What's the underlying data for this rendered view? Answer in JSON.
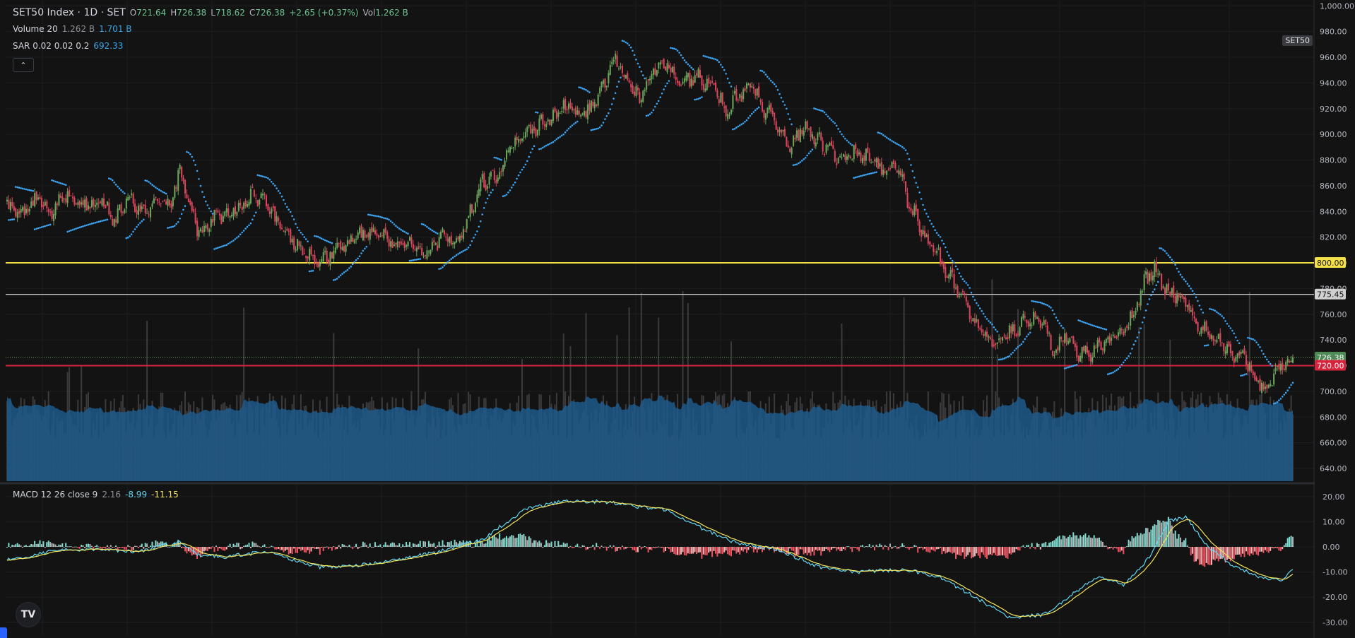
{
  "header": {
    "symbol_title": "SET50 Index · 1D · SET",
    "open_label": "O",
    "open": "721.64",
    "high_label": "H",
    "high": "726.38",
    "low_label": "L",
    "low": "718.62",
    "close_label": "C",
    "close": "726.38",
    "change": "+2.65 (+0.37%)",
    "vol_label": "Vol",
    "vol": "1.262 B"
  },
  "indicators": {
    "volume": {
      "name": "Volume 20",
      "v1": "1.262 B",
      "v2": "1.701 B"
    },
    "sar": {
      "name": "SAR 0.02 0.02 0.2",
      "value": "692.33"
    },
    "macd": {
      "name": "MACD 12 26 close 9",
      "hist": "2.16",
      "macd": "-8.99",
      "signal": "-11.15"
    },
    "collapse_icon": "chevron-up-icon"
  },
  "symbol_badge": "SET50",
  "logo_text": "TV",
  "colors": {
    "background": "#131313",
    "up": "#6aa35a",
    "down": "#d9455c",
    "sar": "#3da5f4",
    "volume_ma": "#1f5a8b",
    "yellow_line": "#f5e04a",
    "red_line": "#d6243c",
    "white_line": "#c8c8c8",
    "macd_line": "#62d6f0",
    "signal_line": "#f3e35a"
  },
  "price_axis": {
    "ticks": [
      "1,000.00",
      "980.00",
      "960.00",
      "940.00",
      "920.00",
      "900.00",
      "880.00",
      "860.00",
      "840.00",
      "820.00",
      "800.00",
      "780.00",
      "760.00",
      "740.00",
      "720.00",
      "700.00",
      "680.00",
      "660.00",
      "640.00"
    ],
    "labels": {
      "yellow": "800.00",
      "white": "775.45",
      "current": "726.38",
      "red": "720.00"
    }
  },
  "macd_axis": {
    "ticks": [
      "20.00",
      "10.00",
      "0.00",
      "-10.00",
      "-20.00",
      "-30.00"
    ]
  },
  "chart_data": [
    {
      "type": "candlestick",
      "title": "SET50 Index · 1D · SET",
      "ylim": [
        630,
        1003
      ],
      "horizontal_lines": [
        {
          "value": 800.0,
          "color": "yellow"
        },
        {
          "value": 775.45,
          "color": "white"
        },
        {
          "value": 720.0,
          "color": "red"
        }
      ],
      "last_close": 726.38,
      "close_path_anchors": [
        [
          0,
          845
        ],
        [
          10,
          838
        ],
        [
          18,
          852
        ],
        [
          24,
          835
        ],
        [
          35,
          855
        ],
        [
          45,
          845
        ],
        [
          55,
          848
        ],
        [
          62,
          832
        ],
        [
          70,
          850
        ],
        [
          78,
          842
        ],
        [
          85,
          845
        ],
        [
          95,
          848
        ],
        [
          100,
          870
        ],
        [
          106,
          842
        ],
        [
          112,
          822
        ],
        [
          120,
          836
        ],
        [
          128,
          838
        ],
        [
          136,
          845
        ],
        [
          142,
          852
        ],
        [
          150,
          848
        ],
        [
          158,
          826
        ],
        [
          166,
          815
        ],
        [
          175,
          806
        ],
        [
          182,
          800
        ],
        [
          190,
          812
        ],
        [
          200,
          818
        ],
        [
          210,
          826
        ],
        [
          218,
          820
        ],
        [
          226,
          812
        ],
        [
          235,
          815
        ],
        [
          242,
          806
        ],
        [
          252,
          822
        ],
        [
          262,
          818
        ],
        [
          268,
          840
        ],
        [
          274,
          862
        ],
        [
          280,
          865
        ],
        [
          286,
          870
        ],
        [
          290,
          888
        ],
        [
          298,
          900
        ],
        [
          306,
          906
        ],
        [
          314,
          910
        ],
        [
          324,
          922
        ],
        [
          330,
          914
        ],
        [
          338,
          920
        ],
        [
          346,
          938
        ],
        [
          352,
          962
        ],
        [
          358,
          942
        ],
        [
          366,
          928
        ],
        [
          374,
          950
        ],
        [
          382,
          955
        ],
        [
          390,
          940
        ],
        [
          398,
          945
        ],
        [
          408,
          938
        ],
        [
          416,
          918
        ],
        [
          422,
          928
        ],
        [
          430,
          938
        ],
        [
          438,
          920
        ],
        [
          446,
          908
        ],
        [
          452,
          888
        ],
        [
          460,
          905
        ],
        [
          470,
          896
        ],
        [
          480,
          882
        ],
        [
          490,
          885
        ],
        [
          500,
          880
        ],
        [
          508,
          870
        ],
        [
          516,
          875
        ],
        [
          522,
          845
        ],
        [
          528,
          830
        ],
        [
          534,
          815
        ],
        [
          540,
          802
        ],
        [
          548,
          785
        ],
        [
          554,
          770
        ],
        [
          562,
          748
        ],
        [
          570,
          740
        ],
        [
          576,
          742
        ],
        [
          584,
          748
        ],
        [
          592,
          758
        ],
        [
          600,
          752
        ],
        [
          606,
          730
        ],
        [
          612,
          745
        ],
        [
          620,
          730
        ],
        [
          628,
          730
        ],
        [
          636,
          738
        ],
        [
          646,
          748
        ],
        [
          652,
          760
        ],
        [
          658,
          785
        ],
        [
          664,
          795
        ],
        [
          670,
          780
        ],
        [
          676,
          775
        ],
        [
          682,
          768
        ],
        [
          690,
          752
        ],
        [
          698,
          742
        ],
        [
          704,
          738
        ],
        [
          710,
          730
        ],
        [
          716,
          725
        ],
        [
          722,
          712
        ],
        [
          728,
          698
        ],
        [
          732,
          710
        ],
        [
          736,
          718
        ],
        [
          740,
          722
        ],
        [
          744,
          726
        ]
      ],
      "volume_ma_note": "rolling 20-day average area"
    },
    {
      "type": "bar",
      "title": "MACD 12 26 close 9",
      "ylim": [
        -33,
        23
      ],
      "macd_anchors": [
        [
          0,
          -5
        ],
        [
          12,
          -4
        ],
        [
          30,
          -1
        ],
        [
          55,
          -1
        ],
        [
          75,
          -2
        ],
        [
          100,
          2
        ],
        [
          110,
          -3
        ],
        [
          125,
          -4
        ],
        [
          150,
          -2
        ],
        [
          180,
          -8
        ],
        [
          210,
          -7
        ],
        [
          250,
          -2
        ],
        [
          275,
          3
        ],
        [
          300,
          15
        ],
        [
          320,
          18
        ],
        [
          345,
          18
        ],
        [
          365,
          16
        ],
        [
          380,
          15
        ],
        [
          400,
          8
        ],
        [
          420,
          2
        ],
        [
          445,
          -1
        ],
        [
          470,
          -8
        ],
        [
          490,
          -10
        ],
        [
          520,
          -9
        ],
        [
          540,
          -12
        ],
        [
          560,
          -20
        ],
        [
          580,
          -28
        ],
        [
          600,
          -27
        ],
        [
          620,
          -17
        ],
        [
          632,
          -12
        ],
        [
          646,
          -15
        ],
        [
          660,
          -5
        ],
        [
          672,
          10
        ],
        [
          682,
          12
        ],
        [
          695,
          0
        ],
        [
          710,
          -8
        ],
        [
          725,
          -12
        ],
        [
          738,
          -13
        ],
        [
          744,
          -9
        ]
      ]
    }
  ]
}
